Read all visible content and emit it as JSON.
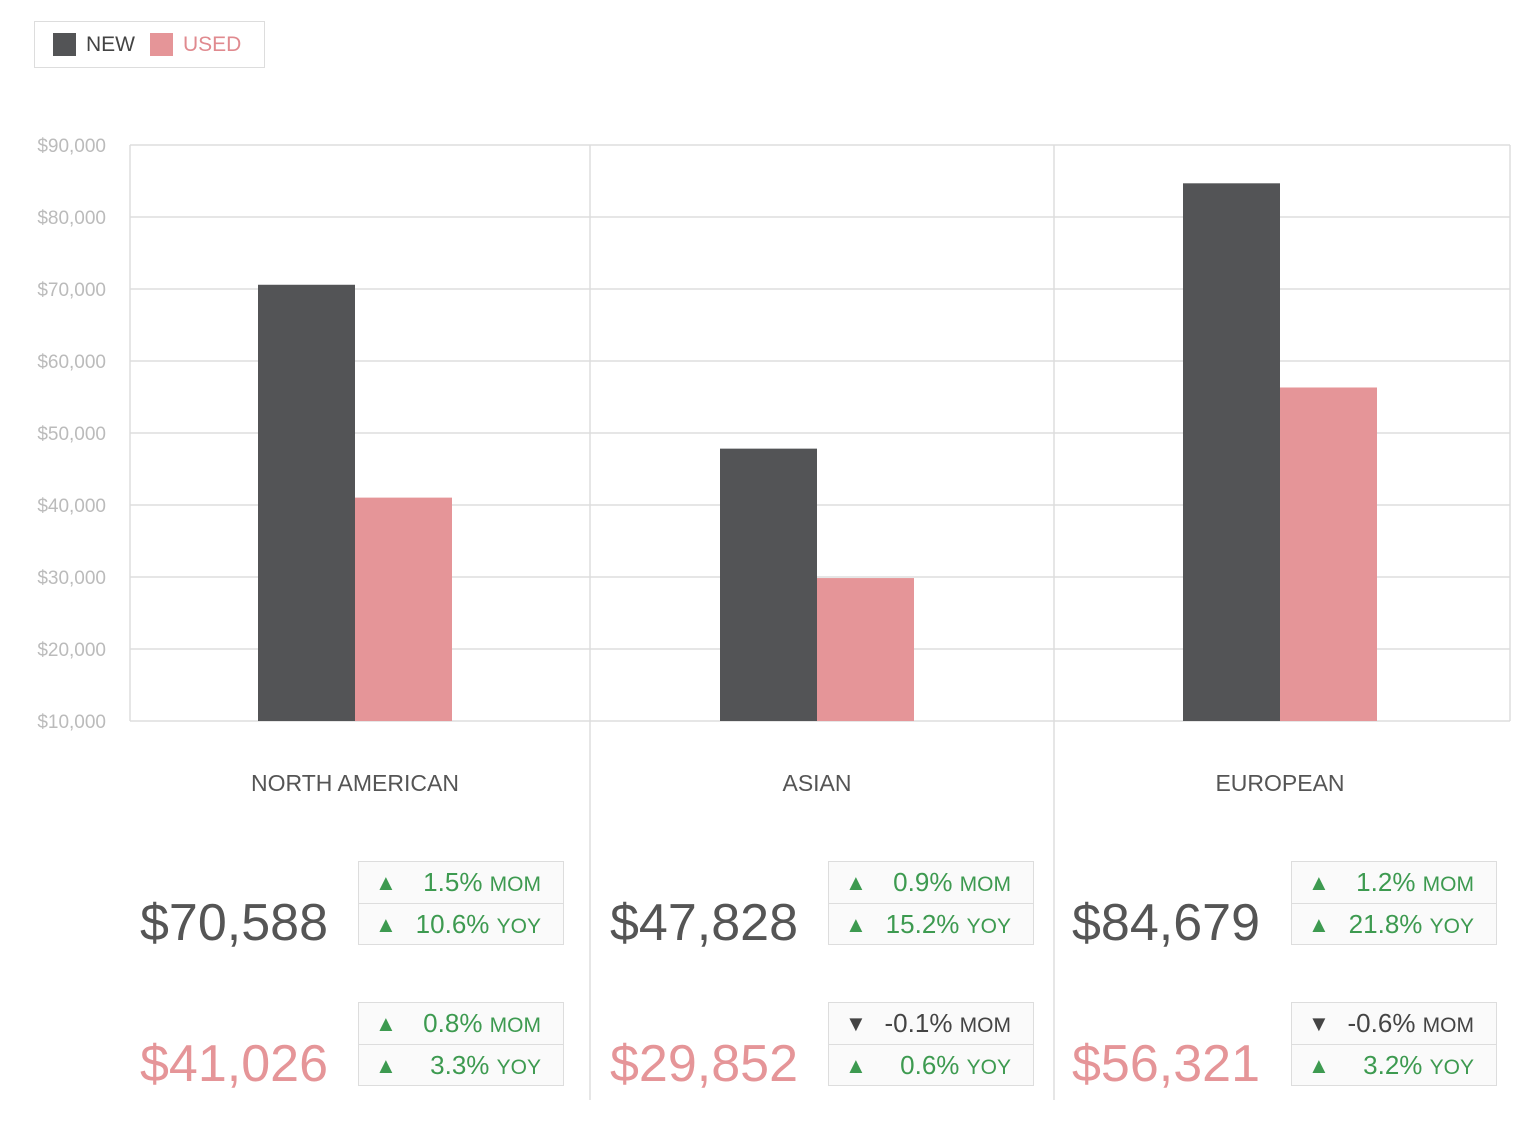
{
  "colors": {
    "new": "#535456",
    "used": "#e59598",
    "up": "#3d9a50",
    "down": "#444444",
    "grid": "#dddddd"
  },
  "legend": {
    "new": "NEW",
    "used": "USED"
  },
  "chart_data": {
    "type": "bar",
    "categories": [
      "NORTH AMERICAN",
      "ASIAN",
      "EUROPEAN"
    ],
    "series": [
      {
        "name": "NEW",
        "values": [
          70588,
          47828,
          84679
        ]
      },
      {
        "name": "USED",
        "values": [
          41026,
          29852,
          56321
        ]
      }
    ],
    "ylim": [
      10000,
      90000
    ],
    "yticks": [
      "$90,000",
      "$80,000",
      "$70,000",
      "$60,000",
      "$50,000",
      "$40,000",
      "$30,000",
      "$20,000",
      "$10,000"
    ],
    "grid": true,
    "legend_position": "top-left"
  },
  "stats": [
    {
      "new_value": "$70,588",
      "used_value": "$41,026",
      "new_changes": [
        {
          "dir": "up",
          "pct": "1.5%",
          "unit": "MOM"
        },
        {
          "dir": "up",
          "pct": "10.6%",
          "unit": "YOY"
        }
      ],
      "used_changes": [
        {
          "dir": "up",
          "pct": "0.8%",
          "unit": "MOM"
        },
        {
          "dir": "up",
          "pct": "3.3%",
          "unit": "YOY"
        }
      ]
    },
    {
      "new_value": "$47,828",
      "used_value": "$29,852",
      "new_changes": [
        {
          "dir": "up",
          "pct": "0.9%",
          "unit": "MOM"
        },
        {
          "dir": "up",
          "pct": "15.2%",
          "unit": "YOY"
        }
      ],
      "used_changes": [
        {
          "dir": "down",
          "pct": "-0.1%",
          "unit": "MOM"
        },
        {
          "dir": "up",
          "pct": "0.6%",
          "unit": "YOY"
        }
      ]
    },
    {
      "new_value": "$84,679",
      "used_value": "$56,321",
      "new_changes": [
        {
          "dir": "up",
          "pct": "1.2%",
          "unit": "MOM"
        },
        {
          "dir": "up",
          "pct": "21.8%",
          "unit": "YOY"
        }
      ],
      "used_changes": [
        {
          "dir": "down",
          "pct": "-0.6%",
          "unit": "MOM"
        },
        {
          "dir": "up",
          "pct": "3.2%",
          "unit": "YOY"
        }
      ]
    }
  ]
}
